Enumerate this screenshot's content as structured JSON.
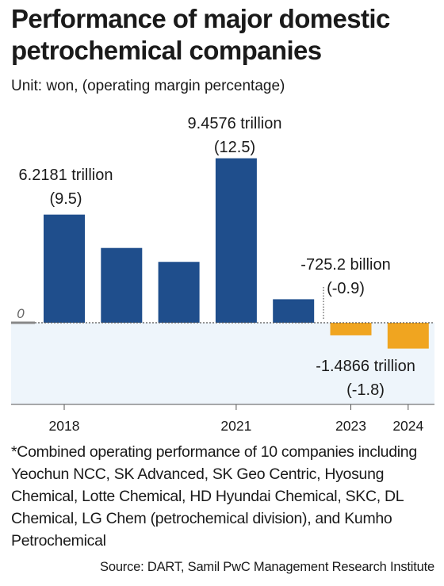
{
  "title": "Performance of major domestic petrochemical companies",
  "unit": "Unit: won, (operating margin percentage)",
  "chart_data": {
    "type": "bar",
    "categories": [
      "2018",
      "2019",
      "2020",
      "2021",
      "2022",
      "2023",
      "2024"
    ],
    "x_tick_labels": [
      "2018",
      "",
      "",
      "2021",
      "",
      "2023",
      "2024"
    ],
    "values_trillion_won": [
      6.2181,
      4.3,
      3.5,
      9.4576,
      1.35,
      -0.7252,
      -1.4866
    ],
    "zero_label": "0",
    "ylim": [
      -2.5,
      11.0
    ],
    "grid": false,
    "positive_color": "#1f4e8c",
    "negative_color": "#f0a520",
    "negative_band_color": "#eef5fb",
    "annotations": [
      {
        "category": "2018",
        "value_text": "6.2181 trillion",
        "margin_text": "(9.5)"
      },
      {
        "category": "2021",
        "value_text": "9.4576 trillion",
        "margin_text": "(12.5)"
      },
      {
        "category": "2023",
        "value_text": "-725.2 billion",
        "margin_text": "(-0.9)"
      },
      {
        "category": "2024",
        "value_text": "-1.4866 trillion",
        "margin_text": "(-1.8)"
      }
    ]
  },
  "note": "*Combined operating performance of 10 companies including Yeochun NCC, SK Advanced, SK Geo Centric, Hyosung Chemical, Lotte Chemical, HD Hyundai Chemical, SKC, DL Chemical, LG Chem (petrochemical division), and Kumho Petrochemical",
  "source": "Source: DART, Samil PwC Management Research Institute"
}
